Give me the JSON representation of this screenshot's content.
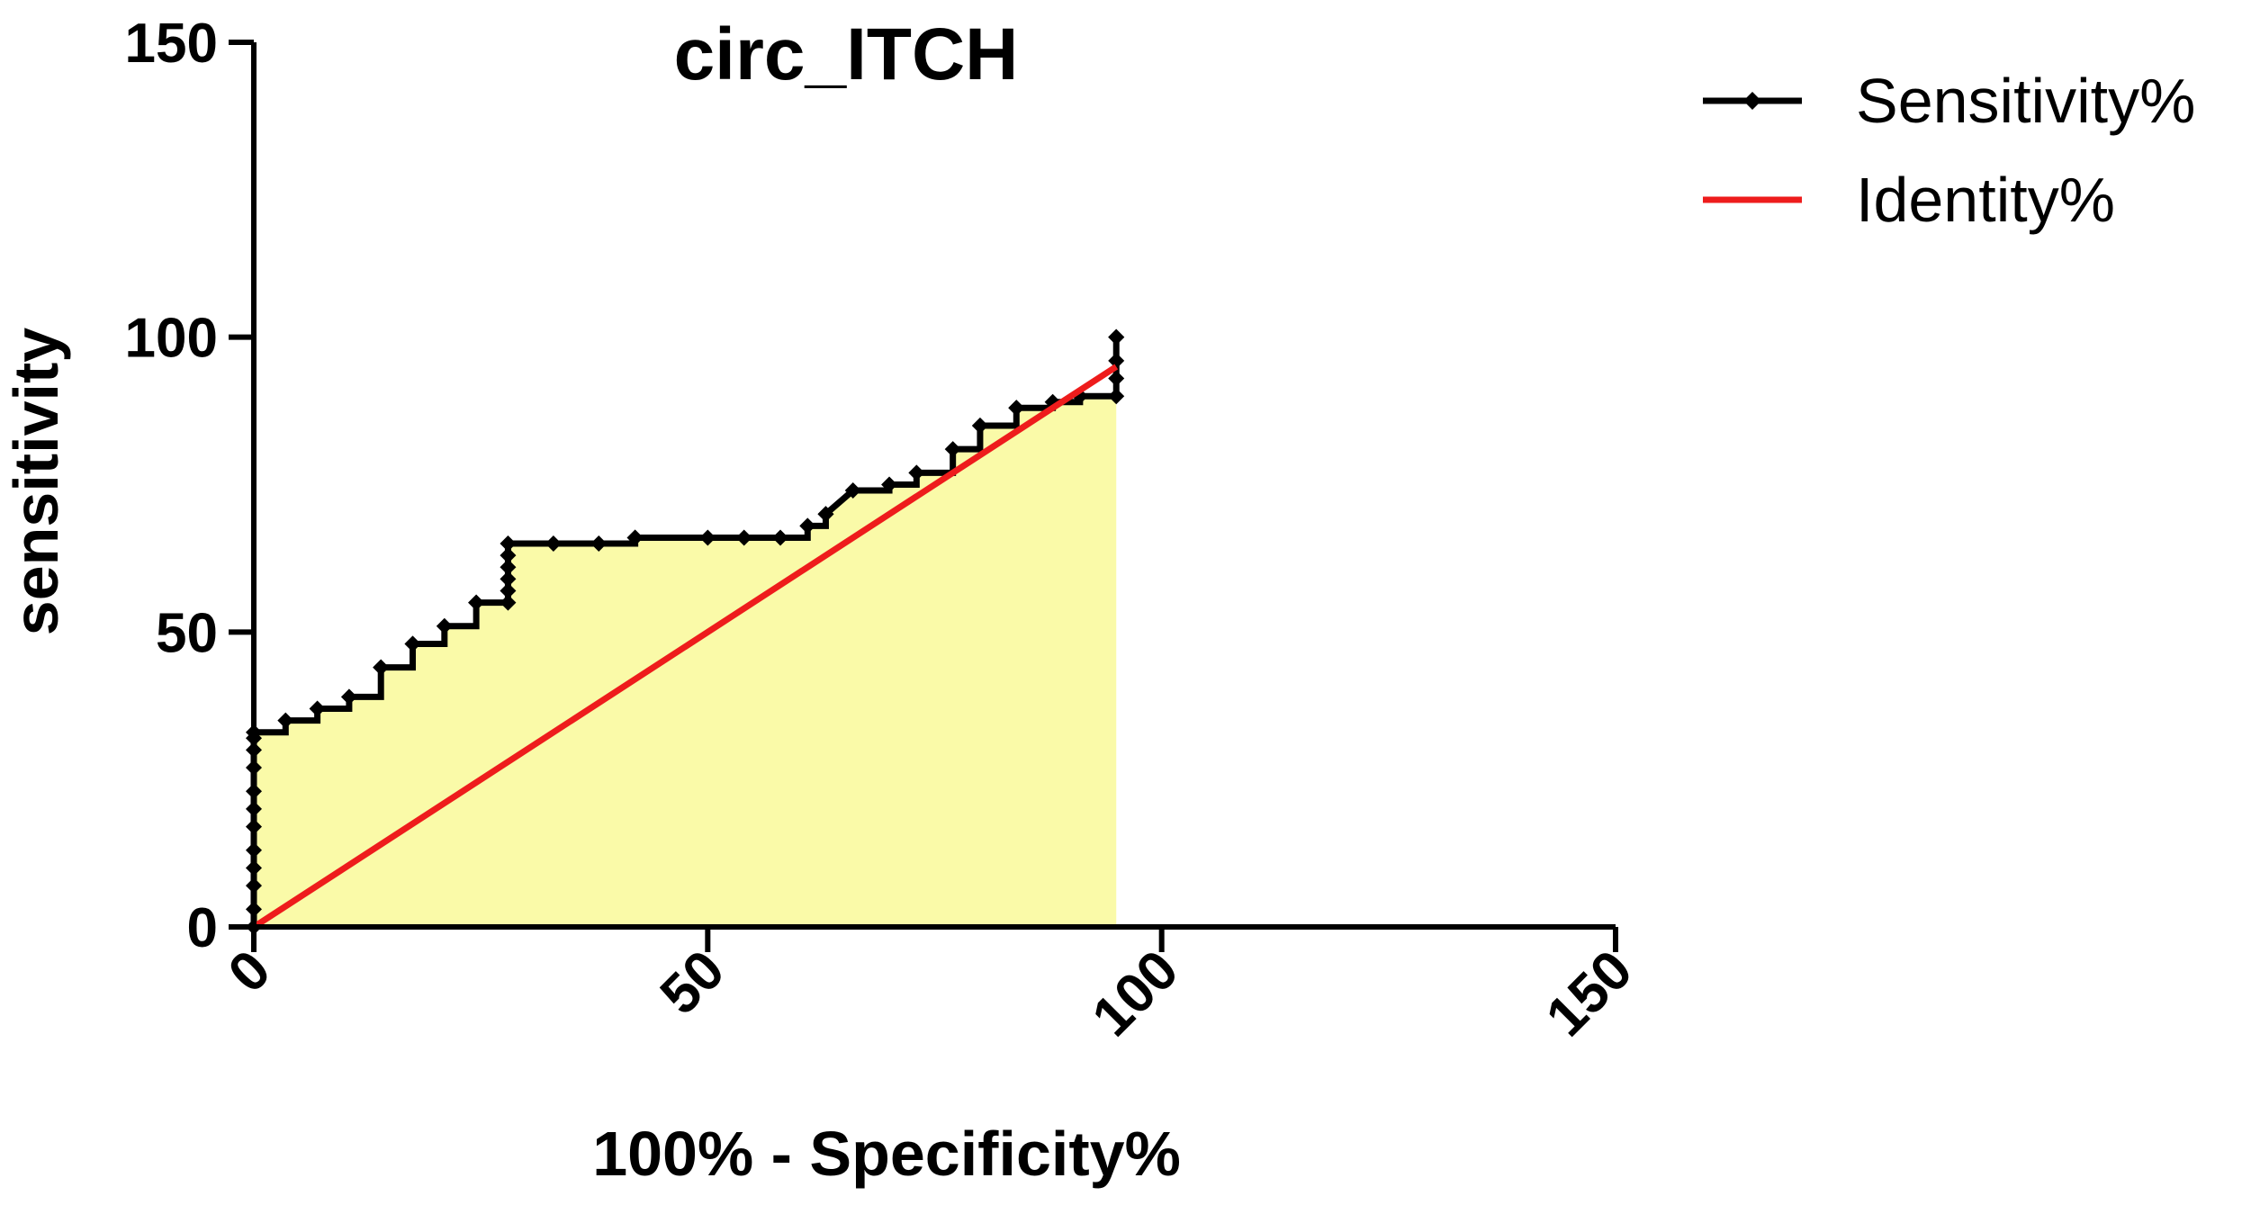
{
  "chart_data": {
    "type": "line",
    "title": "circ_ITCH",
    "xlabel": "100% -  Specificity%",
    "ylabel": "sensitivity",
    "xlim": [
      0,
      150
    ],
    "ylim": [
      0,
      150
    ],
    "x_ticks": [
      0,
      50,
      100,
      150
    ],
    "y_ticks": [
      0,
      50,
      100,
      150
    ],
    "x_tick_labels": [
      "0",
      "50",
      "100",
      "150"
    ],
    "y_tick_labels": [
      "0",
      "50",
      "100",
      "150"
    ],
    "legend_position": "top-right",
    "area_fill_color": "#fafaa8",
    "series": [
      {
        "name": "Sensitivity%",
        "color": "#000000",
        "marker": "diamond",
        "x": [
          0,
          0,
          0,
          0,
          0,
          0,
          0,
          0,
          0,
          0,
          0,
          0,
          3.5,
          3.5,
          7,
          7,
          10.5,
          10.5,
          14,
          14,
          17.5,
          17.5,
          21,
          21,
          24.5,
          24.5,
          28,
          28,
          28,
          28,
          28,
          28,
          28,
          33,
          38,
          42,
          42,
          50,
          54,
          58,
          61,
          61,
          63,
          63,
          66,
          70,
          70,
          73,
          73,
          77,
          77,
          80,
          80,
          84,
          84,
          88,
          88,
          91,
          91,
          95,
          95,
          95,
          95
        ],
        "y": [
          0,
          3,
          7,
          10,
          13,
          17,
          20,
          23,
          27,
          30,
          32,
          33,
          33,
          35,
          35,
          37,
          37,
          39,
          39,
          44,
          44,
          48,
          48,
          51,
          51,
          55,
          55,
          57,
          59,
          61,
          63,
          64,
          65,
          65,
          65,
          65,
          66,
          66,
          66,
          66,
          66,
          68,
          68,
          70,
          74,
          74,
          75,
          75,
          77,
          77,
          81,
          81,
          85,
          85,
          88,
          88,
          89,
          89,
          90,
          90,
          93,
          96,
          100
        ],
        "marker_x": [
          0,
          0,
          0,
          0,
          0,
          0,
          0,
          0,
          0,
          0,
          0,
          0,
          3.5,
          7,
          10.5,
          14,
          14,
          17.5,
          17.5,
          21,
          24.5,
          24.5,
          28,
          28,
          28,
          28,
          28,
          28,
          33,
          38,
          42,
          42,
          50,
          54,
          58,
          61,
          63,
          63,
          66,
          70,
          73,
          77,
          80,
          80,
          84,
          84,
          88,
          91,
          95,
          95,
          95,
          95,
          95
        ]
      },
      {
        "name": "Identity%",
        "color": "#ee1c1c",
        "marker": "none",
        "x": [
          0,
          95
        ],
        "y": [
          0,
          95
        ]
      }
    ]
  }
}
